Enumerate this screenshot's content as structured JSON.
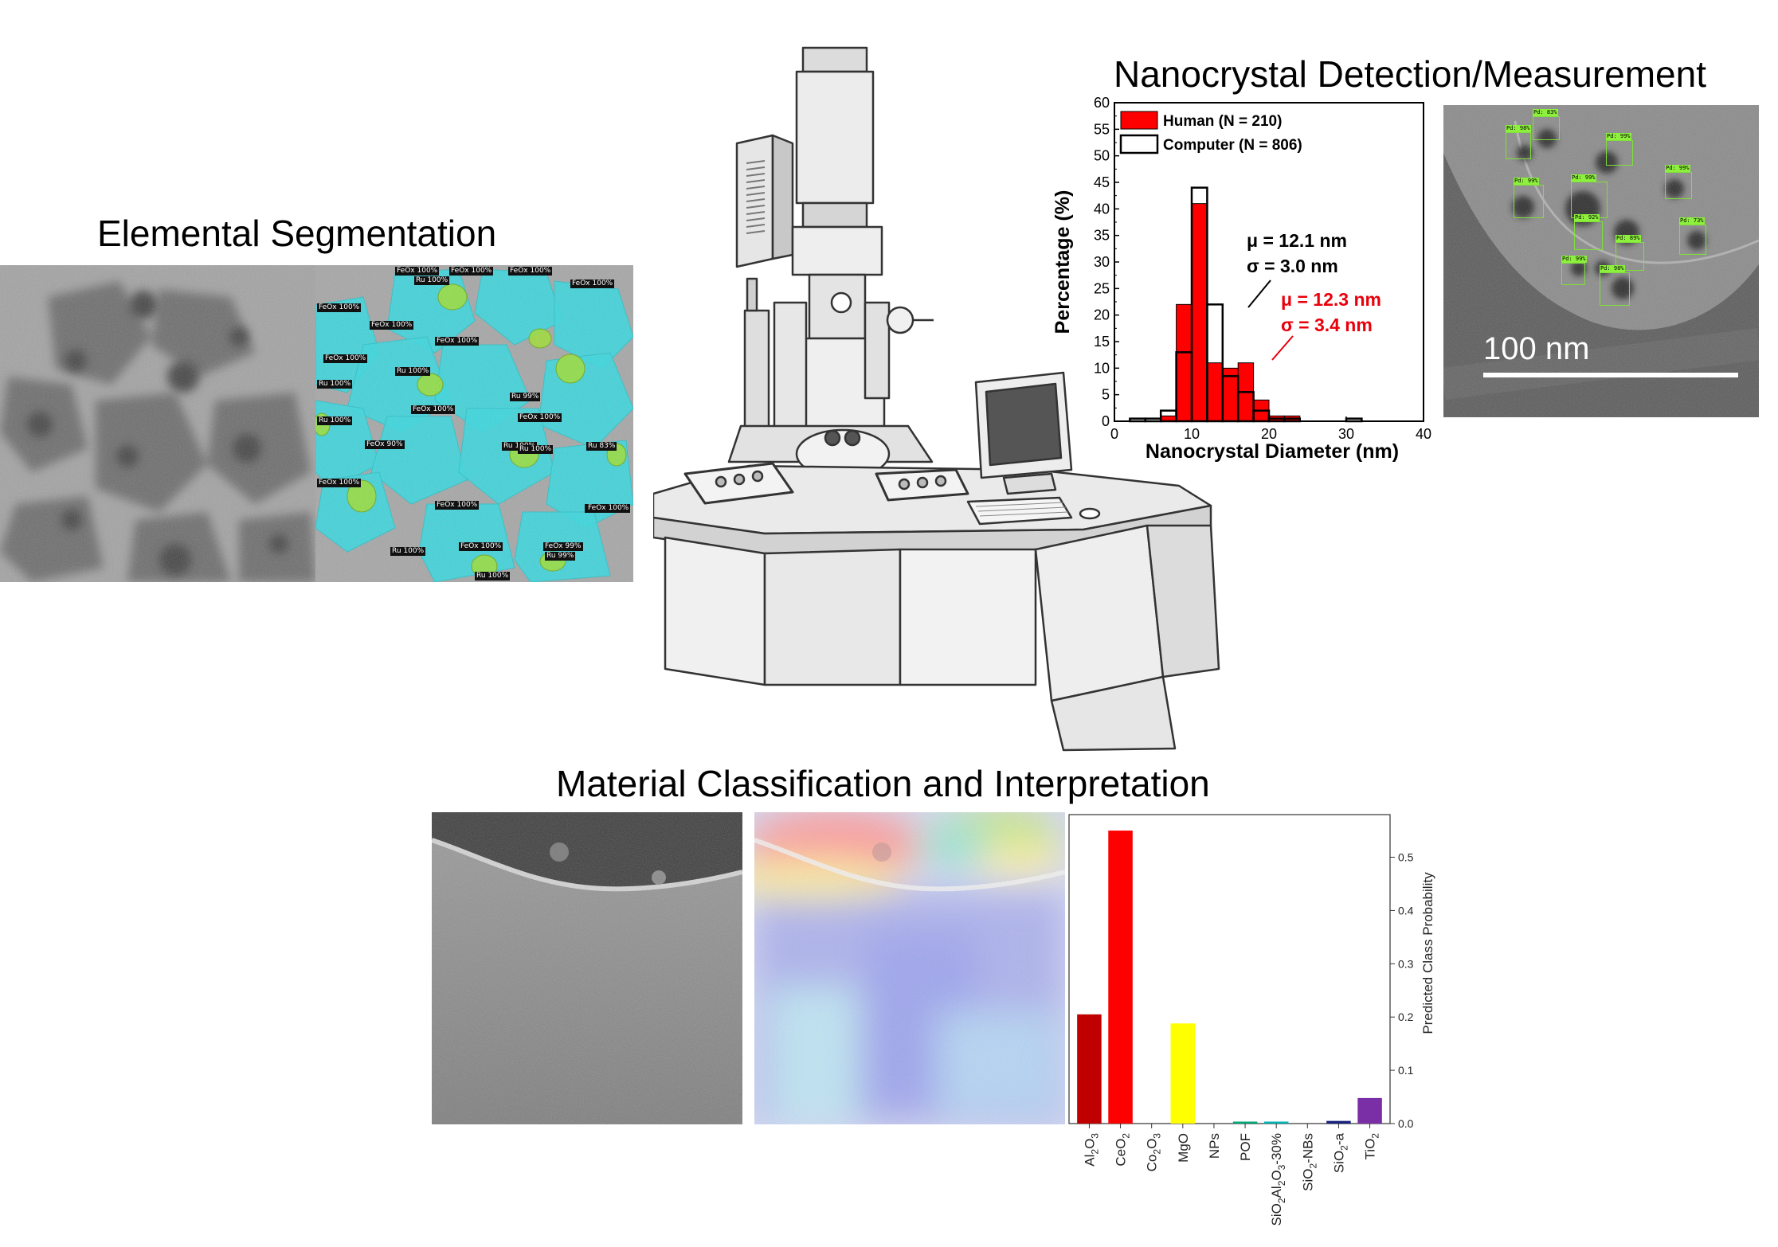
{
  "titles": {
    "segmentation": "Elemental Segmentation",
    "detection": "Nanocrystal Detection/Measurement",
    "classification": "Material Classification and Interpretation"
  },
  "segmentation": {
    "labels": [
      {
        "text": "FeOx 100%"
      },
      {
        "text": "FeOx 100%"
      },
      {
        "text": "FeOx 100%"
      },
      {
        "text": "FeOx 100%"
      },
      {
        "text": "Ru 100%"
      },
      {
        "text": "FeOx 100%"
      },
      {
        "text": "FeOx 100%"
      },
      {
        "text": "FeOx 100%"
      },
      {
        "text": "FeOx 100%"
      },
      {
        "text": "Ru 100%"
      },
      {
        "text": "Ru 100%"
      },
      {
        "text": "Ru 99%"
      },
      {
        "text": "FeOx 100%"
      },
      {
        "text": "Ru 100%"
      },
      {
        "text": "FeOx 100%"
      },
      {
        "text": "FeOx 90%"
      },
      {
        "text": "FeOx 100%"
      },
      {
        "text": "Ru 100%"
      },
      {
        "text": "Ru 100%"
      },
      {
        "text": "Ru 83%"
      },
      {
        "text": "FeOx 100%"
      },
      {
        "text": "Ru 100%"
      },
      {
        "text": "FeOx 100%"
      },
      {
        "text": "FeOx 100%"
      },
      {
        "text": "Ru 100%"
      },
      {
        "text": "FeOx 99%"
      },
      {
        "text": "Ru 99%"
      },
      {
        "text": "FeOx 100%"
      }
    ]
  },
  "detection": {
    "scale_bar": "100 nm",
    "boxes": [
      {
        "text": "Pd: 83%"
      },
      {
        "text": "Pd: 98%"
      },
      {
        "text": "Pd: 99%"
      },
      {
        "text": "Pd: 99%"
      },
      {
        "text": "Pd: 99%"
      },
      {
        "text": "Pd: 99%"
      },
      {
        "text": "Pd: 92%"
      },
      {
        "text": "Pd: 89%"
      },
      {
        "text": "Pd: 73%"
      },
      {
        "text": "Pd: 99%"
      },
      {
        "text": "Pd: 98%"
      }
    ]
  },
  "colors": {
    "human": "#ff0000",
    "computer": "#000000",
    "stat_human": "#e8000b"
  },
  "chart_data": [
    {
      "type": "bar",
      "xlabel": "Nanocrystal Diameter (nm)",
      "ylabel": "Percentage (%)",
      "xlim": [
        0,
        40
      ],
      "ylim": [
        0,
        60
      ],
      "x_ticks": [
        0,
        10,
        20,
        30,
        40
      ],
      "y_ticks": [
        0,
        5,
        10,
        15,
        20,
        25,
        30,
        35,
        40,
        45,
        50,
        55,
        60
      ],
      "bin_width": 2,
      "bin_starts": [
        2,
        4,
        6,
        8,
        10,
        12,
        14,
        16,
        18,
        20,
        22,
        24,
        26,
        28,
        30
      ],
      "series": [
        {
          "name": "Human (N = 210)",
          "values": [
            0,
            0,
            1,
            22,
            41,
            11,
            10,
            11,
            4,
            1,
            1,
            0,
            0,
            0,
            0
          ]
        },
        {
          "name": "Computer (N = 806)",
          "values": [
            0.5,
            0.5,
            2,
            13,
            44,
            22,
            8.5,
            5.5,
            2,
            0.5,
            0.5,
            0,
            0,
            0,
            0.5
          ]
        }
      ],
      "annotations": [
        {
          "mu": "μ = 12.1 nm",
          "sigma": "σ = 3.0 nm"
        },
        {
          "mu": "μ = 12.3 nm",
          "sigma": "σ = 3.4 nm"
        }
      ],
      "legend": "top-left"
    },
    {
      "type": "bar",
      "ylabel": "Predicted Class Probability",
      "ylim": [
        0,
        0.58
      ],
      "y_ticks": [
        0.0,
        0.1,
        0.2,
        0.3,
        0.4,
        0.5
      ],
      "y_tick_labels": [
        "0.0",
        "0.1",
        "0.2",
        "0.3",
        "0.4",
        "0.5"
      ],
      "categories": [
        {
          "base": "Al",
          "parts": [
            [
              "Al",
              ""
            ],
            [
              "2",
              "sub"
            ],
            [
              "O",
              ""
            ],
            [
              "3",
              "sub"
            ]
          ]
        },
        {
          "base": "Ce",
          "parts": [
            [
              "CeO",
              ""
            ],
            [
              "2",
              "sub"
            ]
          ]
        },
        {
          "base": "Co",
          "parts": [
            [
              "Co",
              ""
            ],
            [
              "2",
              "sub"
            ],
            [
              "O",
              ""
            ],
            [
              "3",
              "sub"
            ]
          ]
        },
        {
          "base": "MgO",
          "parts": [
            [
              "MgO",
              ""
            ]
          ]
        },
        {
          "base": "NPs",
          "parts": [
            [
              "NPs",
              ""
            ]
          ]
        },
        {
          "base": "POF",
          "parts": [
            [
              "POF",
              ""
            ]
          ]
        },
        {
          "base": "SiAl",
          "parts": [
            [
              "SiO",
              ""
            ],
            [
              "2",
              "sub"
            ],
            [
              "Al",
              ""
            ],
            [
              "2",
              "sub"
            ],
            [
              "O",
              ""
            ],
            [
              "3",
              "sub"
            ],
            [
              "-30%",
              ""
            ]
          ]
        },
        {
          "base": "SiNB",
          "parts": [
            [
              "SiO",
              ""
            ],
            [
              "2",
              "sub"
            ],
            [
              "-NBs",
              ""
            ]
          ]
        },
        {
          "base": "Sia",
          "parts": [
            [
              "SiO",
              ""
            ],
            [
              "2",
              "sub"
            ],
            [
              "-a",
              ""
            ]
          ]
        },
        {
          "base": "Ti",
          "parts": [
            [
              "TiO",
              ""
            ],
            [
              "2",
              "sub"
            ]
          ]
        }
      ],
      "values": [
        0.205,
        0.55,
        0.0,
        0.188,
        0.0,
        0.002,
        0.002,
        0.0,
        0.005,
        0.048
      ],
      "bar_colors": [
        "#c00000",
        "#ff0000",
        "#ff8c00",
        "#ffff00",
        "#bfbf00",
        "#00a878",
        "#00b4b4",
        "#0072c6",
        "#1a237e",
        "#7b2fa6"
      ],
      "y_axis_side": "right",
      "grid": false
    }
  ]
}
